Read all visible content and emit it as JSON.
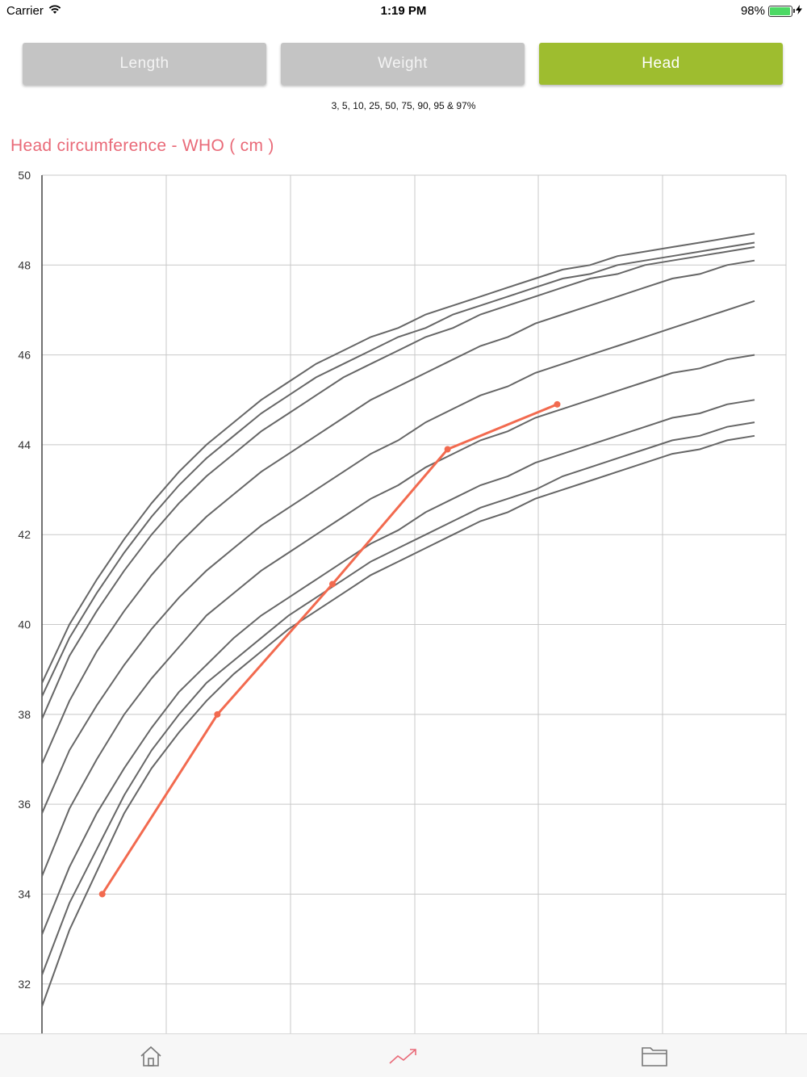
{
  "status_bar": {
    "carrier": "Carrier",
    "time": "1:19 PM",
    "battery": "98%",
    "battery_level": 0.98
  },
  "tabs": [
    {
      "label": "Length",
      "active": false
    },
    {
      "label": "Weight",
      "active": false
    },
    {
      "label": "Head",
      "active": true
    }
  ],
  "percentile_caption": "3, 5, 10, 25, 50, 75, 90, 95 & 97%",
  "chart_title": "Head circumference - WHO ( cm )",
  "colors": {
    "accent": "#9ebd2f",
    "title": "#e96a78",
    "curve": "#666666",
    "child_line": "#f26a4f",
    "grid": "#c8c8c8"
  },
  "bottom_tabs": [
    {
      "icon": "home-icon",
      "active": false
    },
    {
      "icon": "growth-chart-icon",
      "active": true
    },
    {
      "icon": "folder-icon",
      "active": false
    }
  ],
  "chart_data": {
    "type": "line",
    "title": "Head circumference - WHO ( cm )",
    "ylabel": "",
    "xlabel": "",
    "ylim": [
      30.9,
      50
    ],
    "xlim": [
      0,
      13
    ],
    "yticks": [
      32,
      34,
      36,
      38,
      40,
      42,
      44,
      46,
      48,
      50
    ],
    "grid": true,
    "x": [
      0,
      0.5,
      1,
      1.5,
      2,
      2.5,
      3,
      3.5,
      4,
      4.5,
      5,
      5.5,
      6,
      6.5,
      7,
      7.5,
      8,
      8.5,
      9,
      9.5,
      10,
      10.5,
      11,
      11.5,
      12,
      12.5,
      13
    ],
    "series": [
      {
        "name": "3%",
        "values": [
          31.5,
          33.2,
          34.5,
          35.8,
          36.8,
          37.6,
          38.3,
          38.9,
          39.4,
          39.9,
          40.3,
          40.7,
          41.1,
          41.4,
          41.7,
          42.0,
          42.3,
          42.5,
          42.8,
          43.0,
          43.2,
          43.4,
          43.6,
          43.8,
          43.9,
          44.1,
          44.2
        ]
      },
      {
        "name": "5%",
        "values": [
          32.2,
          33.8,
          35.0,
          36.2,
          37.2,
          38.0,
          38.7,
          39.2,
          39.7,
          40.2,
          40.6,
          41.0,
          41.4,
          41.7,
          42.0,
          42.3,
          42.6,
          42.8,
          43.0,
          43.3,
          43.5,
          43.7,
          43.9,
          44.1,
          44.2,
          44.4,
          44.5
        ]
      },
      {
        "name": "10%",
        "values": [
          33.1,
          34.6,
          35.8,
          36.8,
          37.7,
          38.5,
          39.1,
          39.7,
          40.2,
          40.6,
          41.0,
          41.4,
          41.8,
          42.1,
          42.5,
          42.8,
          43.1,
          43.3,
          43.6,
          43.8,
          44.0,
          44.2,
          44.4,
          44.6,
          44.7,
          44.9,
          45.0
        ]
      },
      {
        "name": "25%",
        "values": [
          34.4,
          35.9,
          37.0,
          38.0,
          38.8,
          39.5,
          40.2,
          40.7,
          41.2,
          41.6,
          42.0,
          42.4,
          42.8,
          43.1,
          43.5,
          43.8,
          44.1,
          44.3,
          44.6,
          44.8,
          45.0,
          45.2,
          45.4,
          45.6,
          45.7,
          45.9,
          46.0
        ]
      },
      {
        "name": "50%",
        "values": [
          35.8,
          37.2,
          38.2,
          39.1,
          39.9,
          40.6,
          41.2,
          41.7,
          42.2,
          42.6,
          43.0,
          43.4,
          43.8,
          44.1,
          44.5,
          44.8,
          45.1,
          45.3,
          45.6,
          45.8,
          46.0,
          46.2,
          46.4,
          46.6,
          46.8,
          47.0,
          47.2
        ]
      },
      {
        "name": "75%",
        "values": [
          36.9,
          38.3,
          39.4,
          40.3,
          41.1,
          41.8,
          42.4,
          42.9,
          43.4,
          43.8,
          44.2,
          44.6,
          45.0,
          45.3,
          45.6,
          45.9,
          46.2,
          46.4,
          46.7,
          46.9,
          47.1,
          47.3,
          47.5,
          47.7,
          47.8,
          48.0,
          48.1
        ]
      },
      {
        "name": "90%",
        "values": [
          37.9,
          39.3,
          40.3,
          41.2,
          42.0,
          42.7,
          43.3,
          43.8,
          44.3,
          44.7,
          45.1,
          45.5,
          45.8,
          46.1,
          46.4,
          46.6,
          46.9,
          47.1,
          47.3,
          47.5,
          47.7,
          47.8,
          48.0,
          48.1,
          48.2,
          48.3,
          48.4
        ]
      },
      {
        "name": "95%",
        "values": [
          38.4,
          39.7,
          40.7,
          41.6,
          42.4,
          43.1,
          43.7,
          44.2,
          44.7,
          45.1,
          45.5,
          45.8,
          46.1,
          46.4,
          46.6,
          46.9,
          47.1,
          47.3,
          47.5,
          47.7,
          47.8,
          48.0,
          48.1,
          48.2,
          48.3,
          48.4,
          48.5
        ]
      },
      {
        "name": "97%",
        "values": [
          38.7,
          40.0,
          41.0,
          41.9,
          42.7,
          43.4,
          44.0,
          44.5,
          45.0,
          45.4,
          45.8,
          46.1,
          46.4,
          46.6,
          46.9,
          47.1,
          47.3,
          47.5,
          47.7,
          47.9,
          48.0,
          48.2,
          48.3,
          48.4,
          48.5,
          48.6,
          48.7
        ]
      }
    ],
    "measurements": {
      "x": [
        1.1,
        3.2,
        5.3,
        7.4,
        9.4
      ],
      "y": [
        34.0,
        38.0,
        40.9,
        43.9,
        44.9
      ]
    }
  }
}
